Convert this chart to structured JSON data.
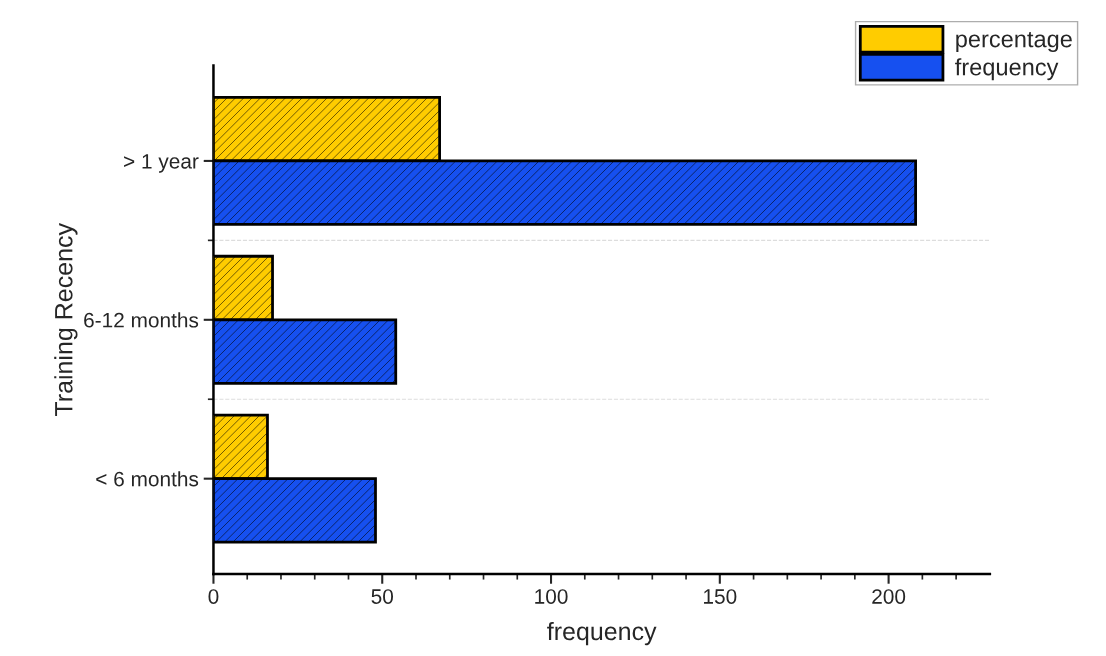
{
  "chart_data": {
    "type": "bar",
    "orientation": "horizontal",
    "xlabel": "frequency",
    "ylabel": "Training Recency",
    "categories": [
      "> 1 year",
      "6-12 months",
      "< 6 months"
    ],
    "series": [
      {
        "name": "percentage",
        "color": "#ffcc00",
        "values": [
          67,
          17.5,
          16
        ]
      },
      {
        "name": "frequency",
        "color": "#1650f0",
        "values": [
          208,
          54,
          48
        ]
      }
    ],
    "xlim": [
      0,
      230
    ],
    "xticks": [
      0,
      {
        "value": 10,
        "label": null
      },
      {
        "value": 20,
        "label": null
      },
      {
        "value": 30,
        "label": null
      },
      {
        "value": 40,
        "label": null
      },
      50,
      {
        "value": 60,
        "label": null
      },
      {
        "value": 70,
        "label": null
      },
      {
        "value": 80,
        "label": null
      },
      {
        "value": 90,
        "label": null
      },
      100,
      {
        "value": 110,
        "label": null
      },
      {
        "value": 120,
        "label": null
      },
      {
        "value": 130,
        "label": null
      },
      {
        "value": 140,
        "label": null
      },
      150,
      {
        "value": 160,
        "label": null
      },
      {
        "value": 170,
        "label": null
      },
      {
        "value": 180,
        "label": null
      },
      {
        "value": 190,
        "label": null
      },
      200,
      {
        "value": 210,
        "label": null
      },
      {
        "value": 220,
        "label": null
      }
    ],
    "grid": "y",
    "legend": "top right"
  }
}
